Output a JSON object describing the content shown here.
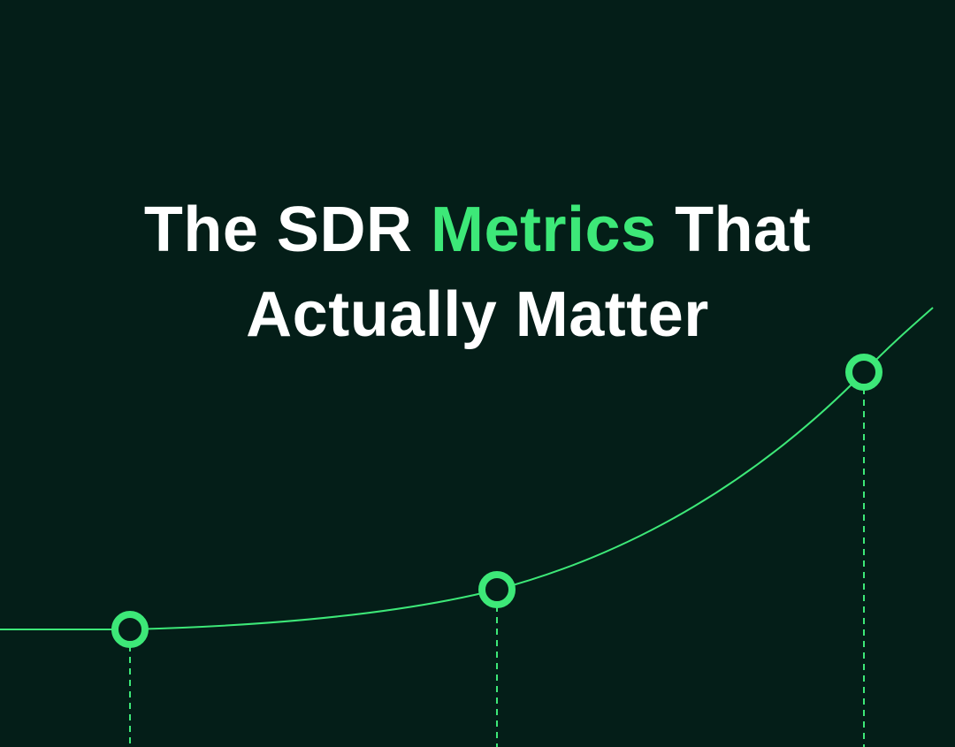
{
  "headline": {
    "start": "The SDR",
    "highlight": "Metrics",
    "end": "That",
    "line2": "Actually Matter"
  }
}
